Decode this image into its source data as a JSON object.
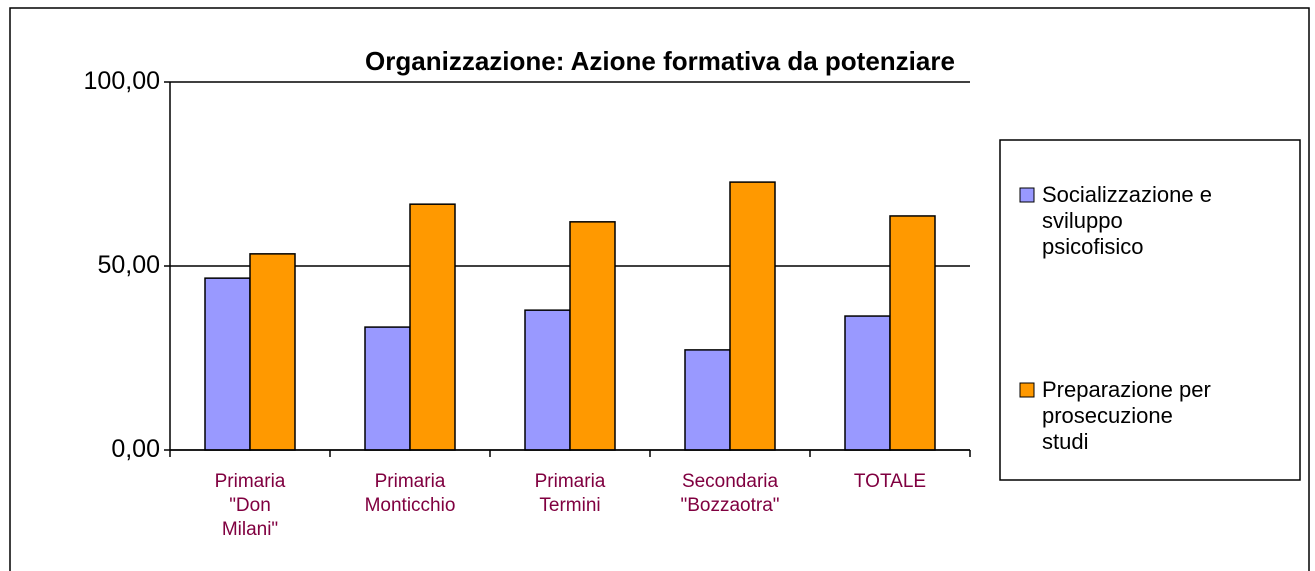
{
  "chart_data": {
    "type": "bar",
    "title": "Organizzazione: Azione formativa da potenziare",
    "categories": [
      "Primaria\n\"Don\nMilani\"",
      "Primaria\nMonticchio",
      "Primaria\nTermini",
      "Secondaria\n\"Bozzaotra\"",
      "TOTALE"
    ],
    "series": [
      {
        "name": "Socializzazione e\nsviluppo\npsicofisico",
        "color": "#9999ff",
        "values": [
          46.7,
          33.4,
          38.0,
          27.2,
          36.4
        ]
      },
      {
        "name": "Preparazione per\nprosecuzione\nstudi",
        "color": "#ff9900",
        "values": [
          53.3,
          66.8,
          62.0,
          72.8,
          63.6
        ]
      }
    ],
    "ylim": [
      0,
      100
    ],
    "yticks": [
      {
        "value": 0,
        "label": "0,00"
      },
      {
        "value": 50,
        "label": "50,00"
      },
      {
        "value": 100,
        "label": "100,00"
      }
    ],
    "grid": true,
    "legend": "right"
  }
}
